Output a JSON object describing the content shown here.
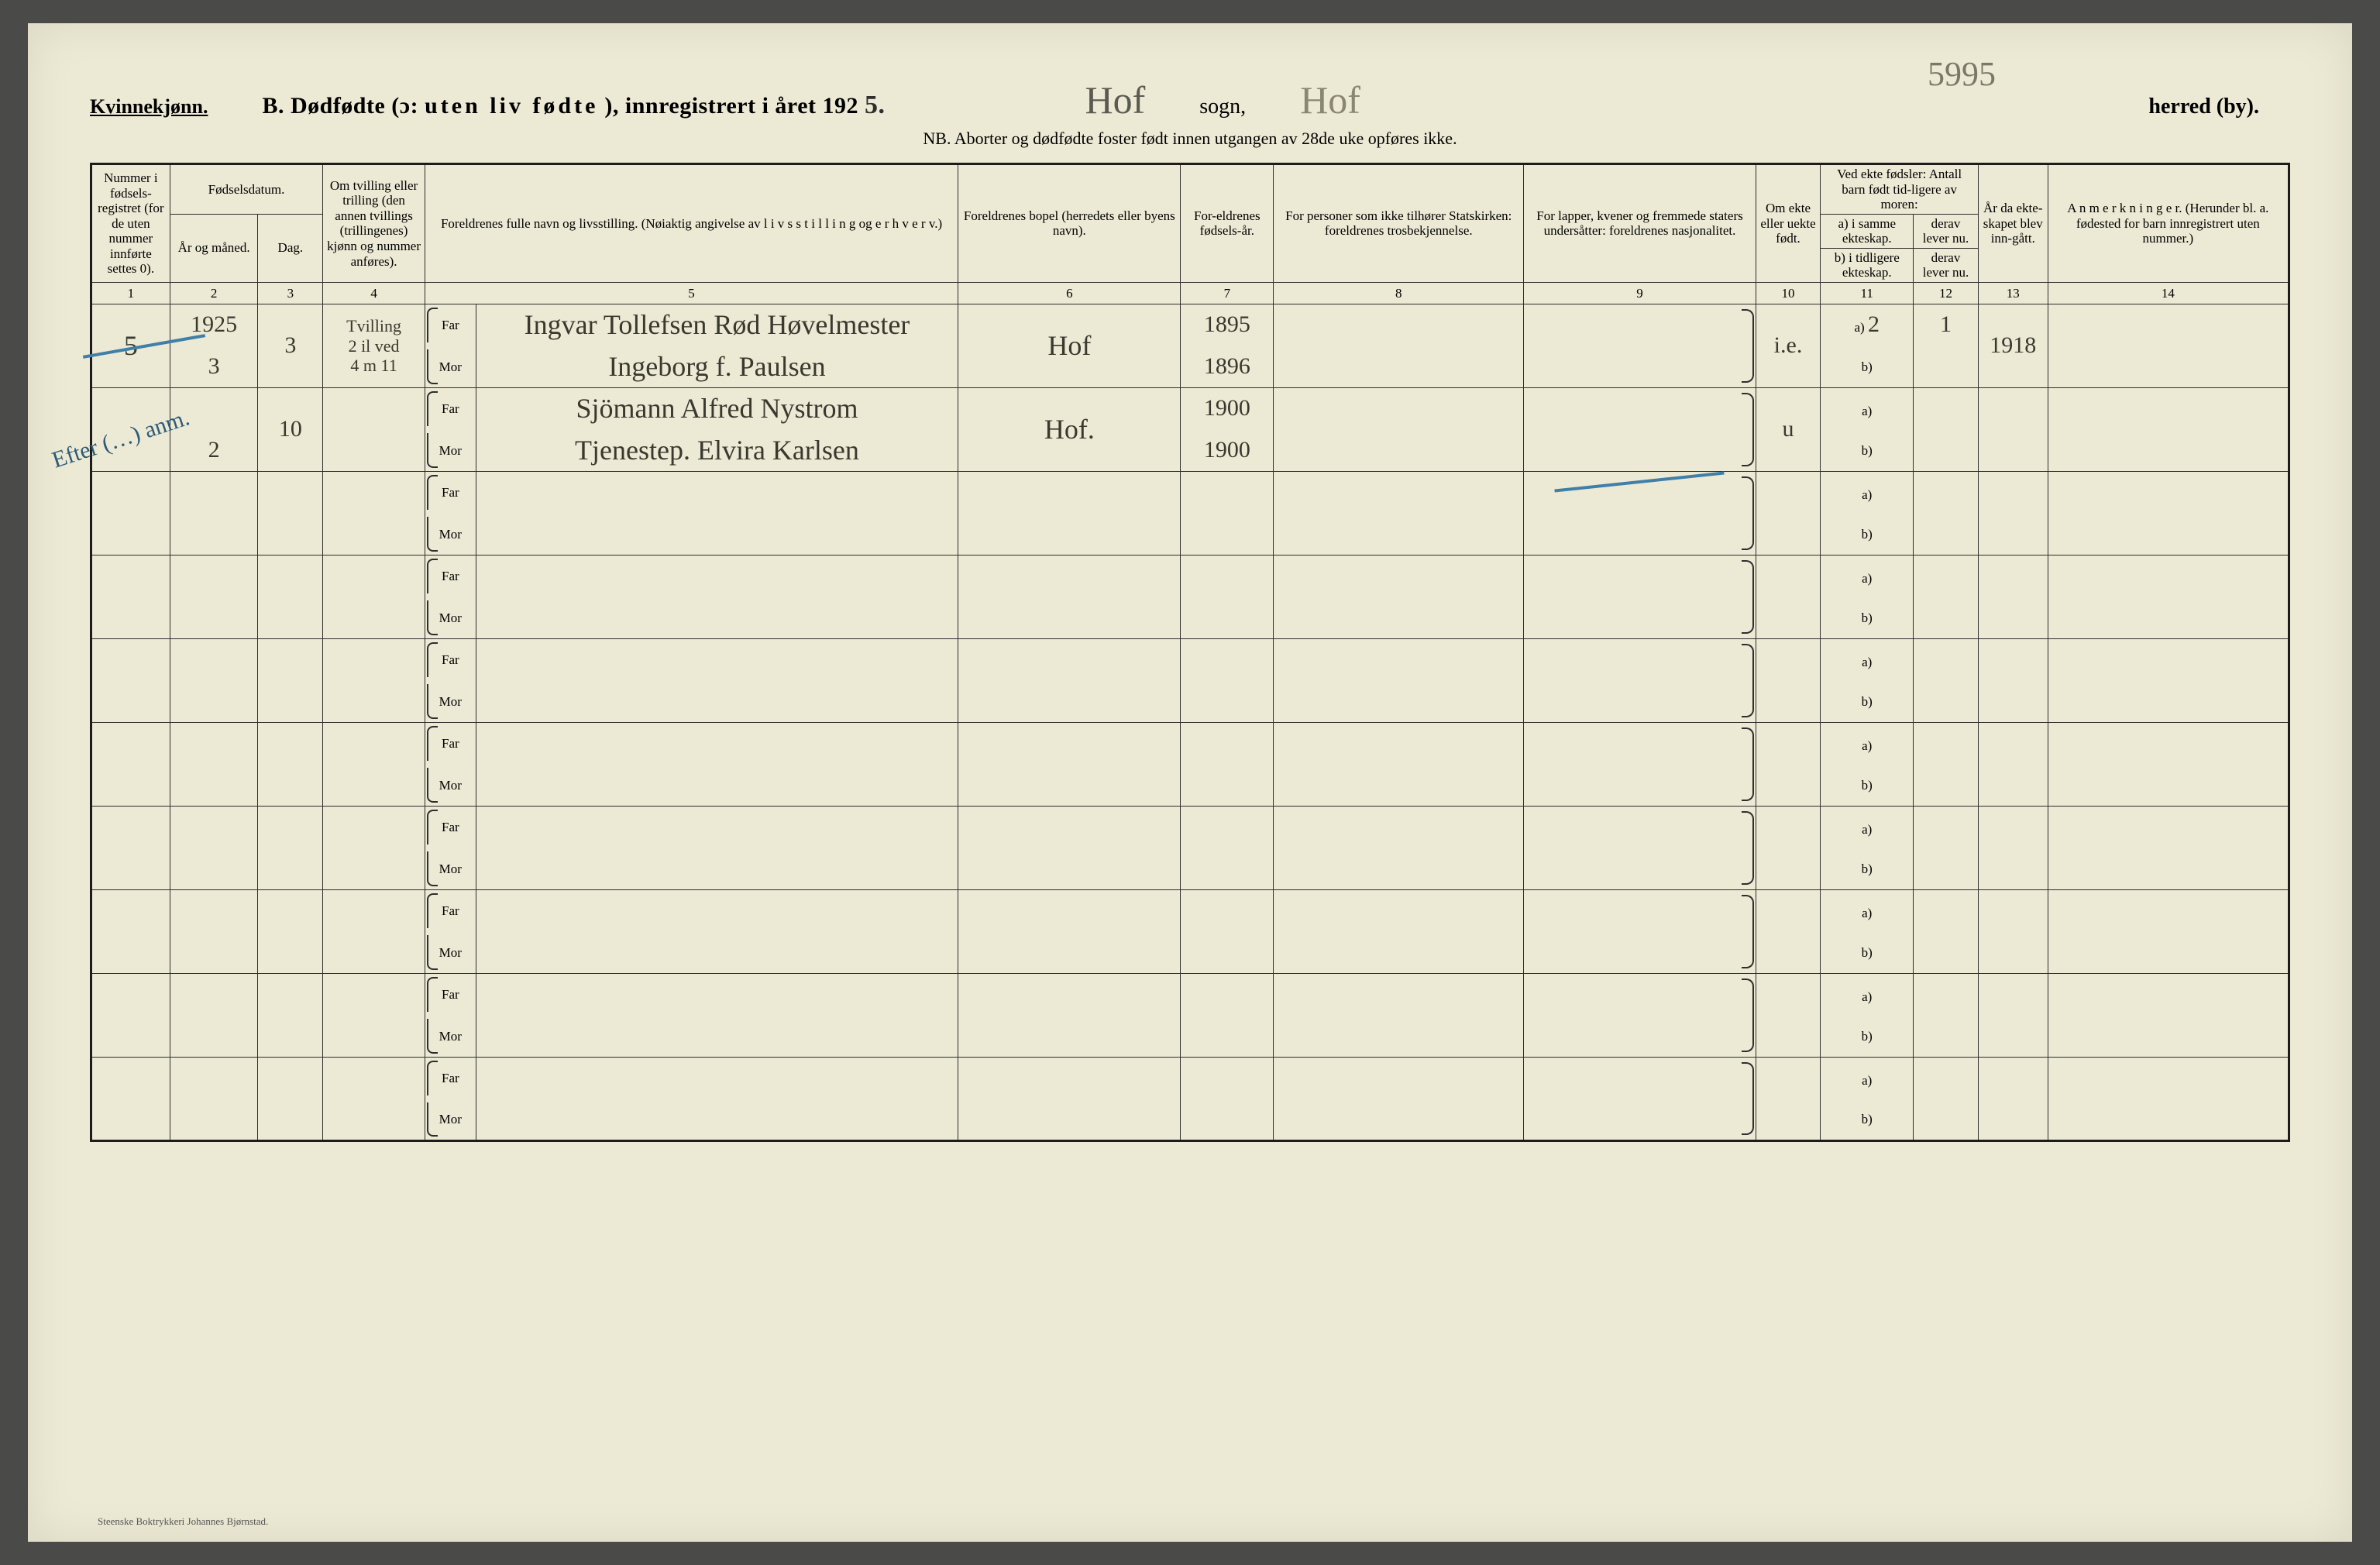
{
  "header": {
    "gender": "Kvinnekjønn.",
    "title_prefix": "B.  Dødfødte (ɔ:",
    "title_spaced": "uten liv fødte",
    "title_suffix": "), innregistrert i året 192",
    "year_digit": "5.",
    "sogn_hand": "Hof",
    "sogn_label": "sogn,",
    "topright_scribble": "5995",
    "herred_hand": "Hof",
    "herred_label": "herred (by).",
    "nb": "NB.  Aborter og dødfødte foster født innen utgangen av 28de uke opføres ikke."
  },
  "columns": {
    "c1": "Nummer i fødsels-registret (for de uten nummer innførte settes 0).",
    "c2_group": "Fødselsdatum.",
    "c2": "År og måned.",
    "c3": "Dag.",
    "c4": "Om tvilling eller trilling (den annen tvillings (trillingenes) kjønn og nummer anføres).",
    "c5": "Foreldrenes fulle navn og livsstilling. (Nøiaktig angivelse av l i v s s t i l l i n g  og  e r h v e r v.)",
    "c6": "Foreldrenes bopel (herredets eller byens navn).",
    "c7": "For-eldrenes fødsels-år.",
    "c8": "For personer som ikke tilhører Statskirken: foreldrenes trosbekjennelse.",
    "c9": "For lapper, kvener og fremmede staters undersåtter: foreldrenes nasjonalitet.",
    "c10": "Om ekte eller uekte født.",
    "c11_group": "Ved ekte fødsler: Antall barn født tid-ligere av moren:",
    "c11a": "a) i samme ekteskap.",
    "c11b": "b) i tidligere ekteskap.",
    "c12a": "derav lever nu.",
    "c12b": "derav lever nu.",
    "c13": "År da ekte-skapet blev inn-gått.",
    "c14": "A n m e r k n i n g e r. (Herunder bl. a. fødested for barn innregistrert uten nummer.)"
  },
  "colnums": [
    "1",
    "2",
    "3",
    "4",
    "5",
    "6",
    "7",
    "8",
    "9",
    "10",
    "11",
    "12",
    "13",
    "14"
  ],
  "labels": {
    "far": "Far",
    "mor": "Mor",
    "a": "a)",
    "b": "b)"
  },
  "rows": [
    {
      "num": "5",
      "year_month_top": "1925",
      "year_month_bot": "3",
      "day": "3",
      "twin": "Tvilling\n2 il ved\n4 m 11",
      "far": "Ingvar Tollefsen Rød  Høvelmester",
      "mor": "Ingeborg f. Paulsen",
      "bopel": "Hof",
      "far_year": "1895",
      "mor_year": "1896",
      "ekte": "i.e.",
      "a_val": "2",
      "lever": "1",
      "ekteskap_year": "1918"
    },
    {
      "num": "",
      "year_month_top": "",
      "year_month_bot": "2",
      "day": "10",
      "twin": "",
      "far": "Sjömann  Alfred Nystrom",
      "mor": "Tjenestep.  Elvira Karlsen",
      "bopel": "Hof.",
      "far_year": "1900",
      "mor_year": "1900",
      "ekte": "u",
      "a_val": "",
      "lever": "",
      "ekteskap_year": ""
    }
  ],
  "blank_count": 8,
  "margin_note": "Efter (…) anm.",
  "footer": "Steenske Boktrykkeri Johannes Bjørnstad."
}
